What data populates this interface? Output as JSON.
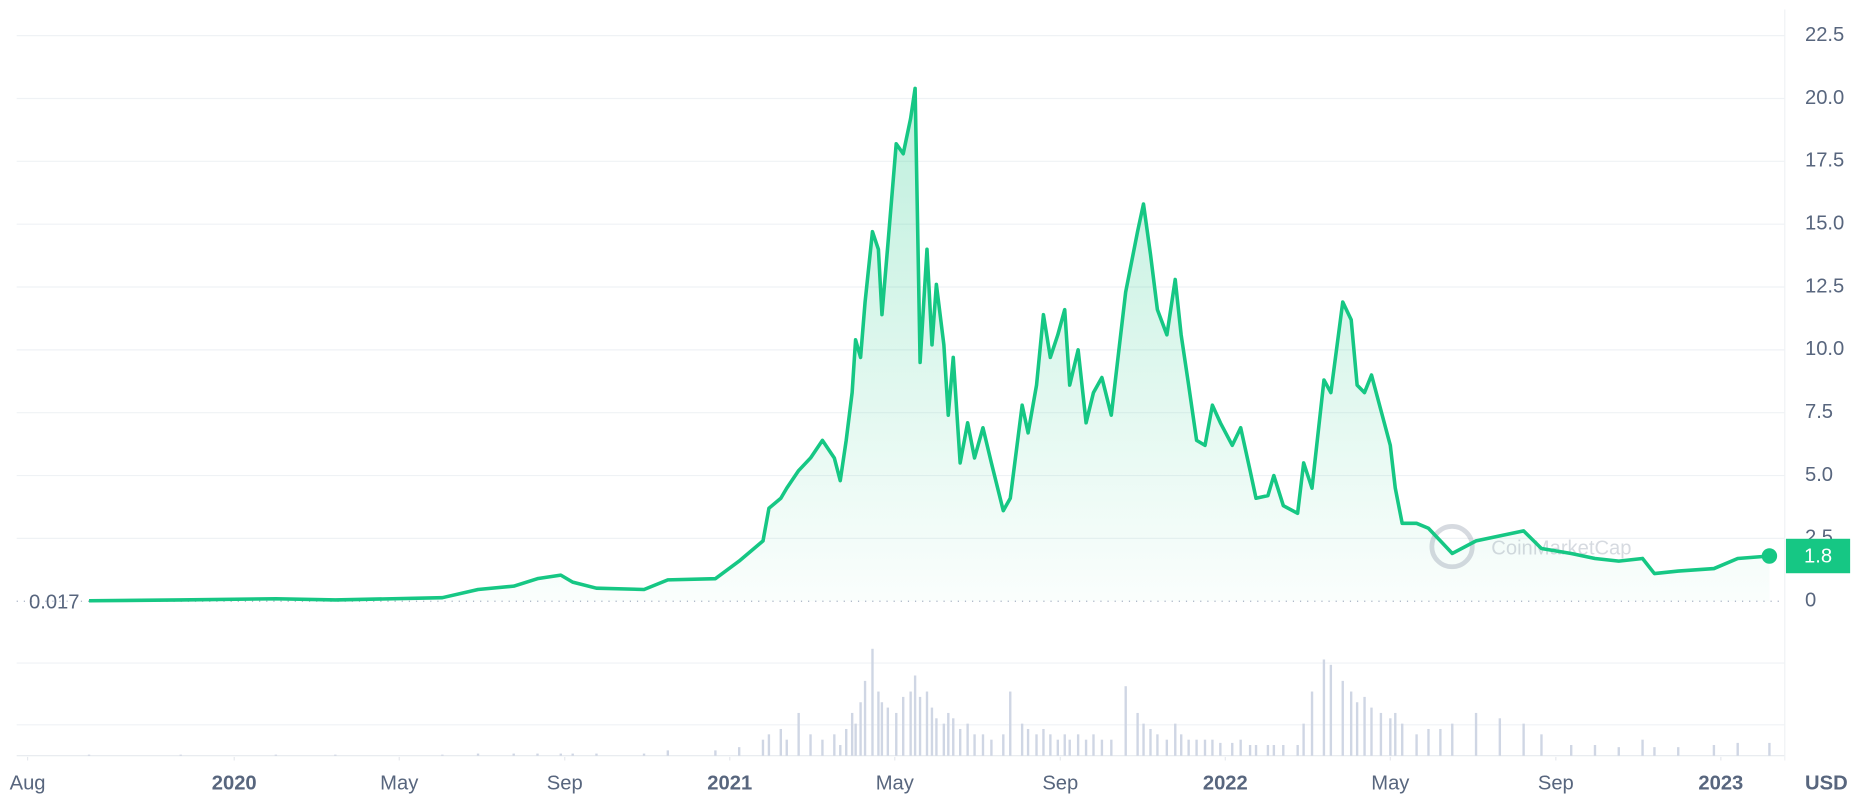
{
  "chart_data": {
    "type": "line",
    "color": "#16c784",
    "x": [
      2019.707,
      2019.892,
      2020.084,
      2020.204,
      2020.42,
      2020.492,
      2020.564,
      2020.612,
      2020.659,
      2020.683,
      2020.731,
      2020.827,
      2020.875,
      2020.971,
      2021.019,
      2021.067,
      2021.079,
      2021.103,
      2021.115,
      2021.139,
      2021.163,
      2021.187,
      2021.211,
      2021.223,
      2021.235,
      2021.247,
      2021.254,
      2021.264,
      2021.273,
      2021.288,
      2021.3,
      2021.307,
      2021.319,
      2021.336,
      2021.35,
      2021.365,
      2021.374,
      2021.384,
      2021.398,
      2021.408,
      2021.417,
      2021.432,
      2021.441,
      2021.451,
      2021.465,
      2021.48,
      2021.494,
      2021.511,
      2021.528,
      2021.552,
      2021.566,
      2021.59,
      2021.602,
      2021.619,
      2021.633,
      2021.647,
      2021.662,
      2021.676,
      2021.686,
      2021.703,
      2021.719,
      2021.734,
      2021.751,
      2021.77,
      2021.799,
      2021.823,
      2021.835,
      2021.849,
      2021.863,
      2021.882,
      2021.899,
      2021.911,
      2021.926,
      2021.942,
      2021.959,
      2021.974,
      2021.99,
      2022.014,
      2022.031,
      2022.05,
      2022.062,
      2022.086,
      2022.098,
      2022.117,
      2022.146,
      2022.158,
      2022.175,
      2022.199,
      2022.213,
      2022.237,
      2022.254,
      2022.266,
      2022.281,
      2022.295,
      2022.314,
      2022.333,
      2022.343,
      2022.357,
      2022.386,
      2022.41,
      2022.434,
      2022.458,
      2022.506,
      2022.554,
      2022.602,
      2022.638,
      2022.698,
      2022.746,
      2022.794,
      2022.842,
      2022.866,
      2022.914,
      2022.986,
      2023.034,
      2023.098
    ],
    "values": [
      0.017,
      0.05,
      0.1,
      0.05,
      0.14,
      0.47,
      0.6,
      0.9,
      1.04,
      0.76,
      0.52,
      0.47,
      0.85,
      0.9,
      1.6,
      2.4,
      3.7,
      4.1,
      4.5,
      5.2,
      5.7,
      6.4,
      5.7,
      4.8,
      6.4,
      8.3,
      10.4,
      9.7,
      11.9,
      14.7,
      14.0,
      11.4,
      14.2,
      18.2,
      17.8,
      19.2,
      20.4,
      9.5,
      14.0,
      10.2,
      12.6,
      10.2,
      7.4,
      9.7,
      5.5,
      7.1,
      5.7,
      6.9,
      5.5,
      3.6,
      4.1,
      7.8,
      6.7,
      8.6,
      11.4,
      9.7,
      10.6,
      11.6,
      8.6,
      10.0,
      7.1,
      8.3,
      8.9,
      7.4,
      12.3,
      14.7,
      15.8,
      13.8,
      11.6,
      10.6,
      12.8,
      10.6,
      8.6,
      6.4,
      6.2,
      7.8,
      7.1,
      6.2,
      6.9,
      5.2,
      4.1,
      4.2,
      5.0,
      3.8,
      3.5,
      5.5,
      4.5,
      8.8,
      8.3,
      11.9,
      11.2,
      8.6,
      8.3,
      9.0,
      7.6,
      6.2,
      4.5,
      3.1,
      3.1,
      2.9,
      2.4,
      1.9,
      2.4,
      2.6,
      2.8,
      2.1,
      1.9,
      1.7,
      1.6,
      1.7,
      1.1,
      1.2,
      1.3,
      1.7,
      1.8
    ],
    "volume_color": "#cfd6e4",
    "volume": [
      1,
      1,
      1,
      1,
      1,
      2,
      2,
      2,
      2,
      2,
      2,
      2,
      5,
      5,
      8,
      15,
      20,
      25,
      15,
      40,
      20,
      15,
      20,
      10,
      25,
      40,
      30,
      50,
      70,
      100,
      60,
      50,
      45,
      40,
      55,
      60,
      75,
      55,
      60,
      45,
      35,
      30,
      40,
      35,
      25,
      30,
      20,
      20,
      15,
      20,
      60,
      30,
      25,
      20,
      25,
      20,
      15,
      20,
      15,
      20,
      15,
      20,
      15,
      15,
      65,
      40,
      30,
      25,
      20,
      15,
      30,
      20,
      15,
      15,
      15,
      15,
      12,
      12,
      15,
      10,
      10,
      10,
      10,
      10,
      10,
      30,
      60,
      90,
      85,
      70,
      60,
      50,
      55,
      45,
      40,
      35,
      40,
      30,
      20,
      25,
      25,
      30,
      40,
      35,
      30,
      20,
      10,
      10,
      8,
      15,
      8,
      8,
      10,
      12,
      12
    ],
    "xlim": [
      2019.561,
      2023.129
    ],
    "xticks": [
      {
        "value": 2019.583,
        "label": "Aug"
      },
      {
        "value": 2020,
        "label": "2020"
      },
      {
        "value": 2020.333,
        "label": "May"
      },
      {
        "value": 2020.667,
        "label": "Sep"
      },
      {
        "value": 2021,
        "label": "2021"
      },
      {
        "value": 2021.333,
        "label": "May"
      },
      {
        "value": 2021.667,
        "label": "Sep"
      },
      {
        "value": 2022,
        "label": "2022"
      },
      {
        "value": 2022.333,
        "label": "May"
      },
      {
        "value": 2022.667,
        "label": "Sep"
      },
      {
        "value": 2023,
        "label": "2023"
      }
    ],
    "ylim": [
      0,
      22.5
    ],
    "yticks": [
      0,
      2.5,
      {
        "value": 5,
        "label": "5.0"
      },
      7.5,
      {
        "value": 10,
        "label": "10.0"
      },
      12.5,
      {
        "value": 15,
        "label": "15.0"
      },
      17.5,
      {
        "value": 20,
        "label": "20.0"
      },
      22.5
    ],
    "grid": true,
    "annotations": [
      "0.017",
      "1.8"
    ],
    "currency": "USD",
    "watermark": "CoinMarketCap"
  }
}
